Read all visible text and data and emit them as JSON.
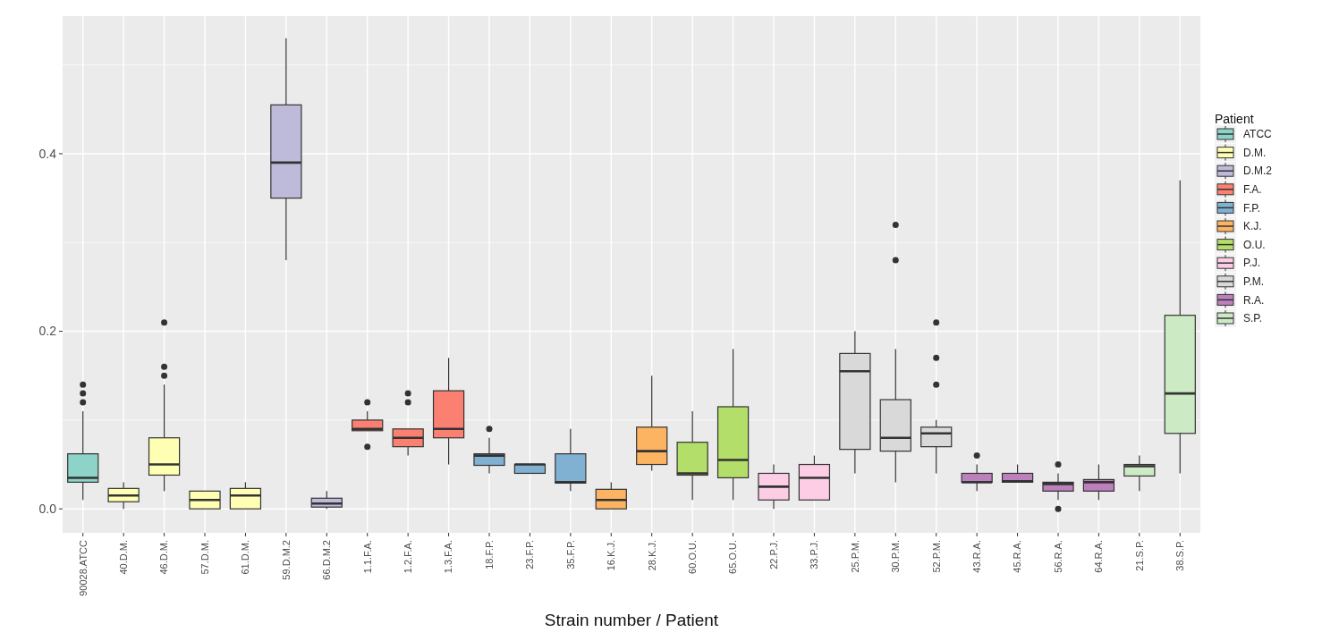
{
  "chart_data": {
    "type": "box",
    "xlabel": "Strain number / Patient",
    "legend_title": "Patient",
    "legend": "right",
    "grid": true,
    "categories": [
      "90028.ATCC",
      "40.D.M.",
      "46.D.M.",
      "57.D.M.",
      "61.D.M.",
      "59.D.M.2",
      "66.D.M.2",
      "1.1.F.A.",
      "1.2.F.A.",
      "1.3.F.A.",
      "18.F.P.",
      "23.F.P.",
      "35.F.P.",
      "16.K.J.",
      "28.K.J.",
      "60.O.U.",
      "65.O.U.",
      "22.P.J.",
      "33.P.J.",
      "25.P.M.",
      "30.P.M.",
      "52.P.M.",
      "43.R.A.",
      "45.R.A.",
      "56.R.A.",
      "64.R.A.",
      "21.S.P.",
      "38.S.P."
    ],
    "ylim": [
      -0.027,
      0.555
    ],
    "yticks": [
      {
        "value": 0,
        "label": "0.0"
      },
      {
        "value": 0.1,
        "label": null
      },
      {
        "value": 0.2,
        "label": "0.2"
      },
      {
        "value": 0.3,
        "label": null
      },
      {
        "value": 0.4,
        "label": "0.4"
      },
      {
        "value": 0.5,
        "label": null
      }
    ],
    "series": [
      {
        "name": "ATCC",
        "color": "#8dd3c7",
        "boxes": [
          {
            "low": 0.01,
            "q1": 0.03,
            "median": 0.035,
            "q3": 0.062,
            "high": 0.11,
            "outliers": [
              0.12,
              0.13,
              0.14
            ]
          },
          null,
          null,
          null,
          null,
          null,
          null,
          null,
          null,
          null,
          null,
          null,
          null,
          null,
          null,
          null,
          null,
          null,
          null,
          null,
          null,
          null,
          null,
          null,
          null,
          null,
          null,
          null
        ]
      },
      {
        "name": "D.M.",
        "color": "#ffffb3",
        "boxes": [
          null,
          {
            "low": 0,
            "q1": 0.008,
            "median": 0.015,
            "q3": 0.023,
            "high": 0.03
          },
          {
            "low": 0.02,
            "q1": 0.038,
            "median": 0.05,
            "q3": 0.08,
            "high": 0.14,
            "outliers": [
              0.15,
              0.16,
              0.21
            ]
          },
          {
            "low": 0,
            "q1": 0,
            "median": 0.01,
            "q3": 0.02,
            "high": 0.02
          },
          {
            "low": 0,
            "q1": 0,
            "median": 0.015,
            "q3": 0.023,
            "high": 0.03
          },
          null,
          null,
          null,
          null,
          null,
          null,
          null,
          null,
          null,
          null,
          null,
          null,
          null,
          null,
          null,
          null,
          null,
          null,
          null,
          null,
          null,
          null,
          null
        ]
      },
      {
        "name": "D.M.2",
        "color": "#bebada",
        "boxes": [
          null,
          null,
          null,
          null,
          null,
          {
            "low": 0.28,
            "q1": 0.35,
            "median": 0.39,
            "q3": 0.455,
            "high": 0.53
          },
          {
            "low": 0,
            "q1": 0.002,
            "median": 0.006,
            "q3": 0.012,
            "high": 0.02
          },
          null,
          null,
          null,
          null,
          null,
          null,
          null,
          null,
          null,
          null,
          null,
          null,
          null,
          null,
          null,
          null,
          null,
          null,
          null,
          null,
          null
        ]
      },
      {
        "name": "F.A.",
        "color": "#fb8072",
        "boxes": [
          null,
          null,
          null,
          null,
          null,
          null,
          null,
          {
            "low": 0.088,
            "q1": 0.088,
            "median": 0.09,
            "q3": 0.1,
            "high": 0.11,
            "outliers": [
              0.07,
              0.12
            ]
          },
          {
            "low": 0.06,
            "q1": 0.07,
            "median": 0.08,
            "q3": 0.09,
            "high": 0.09,
            "outliers": [
              0.12,
              0.13
            ]
          },
          {
            "low": 0.05,
            "q1": 0.08,
            "median": 0.09,
            "q3": 0.133,
            "high": 0.17
          },
          null,
          null,
          null,
          null,
          null,
          null,
          null,
          null,
          null,
          null,
          null,
          null,
          null,
          null,
          null,
          null,
          null,
          null
        ]
      },
      {
        "name": "F.P.",
        "color": "#80b1d3",
        "boxes": [
          null,
          null,
          null,
          null,
          null,
          null,
          null,
          null,
          null,
          null,
          {
            "low": 0.04,
            "q1": 0.049,
            "median": 0.06,
            "q3": 0.062,
            "high": 0.08,
            "outliers": [
              0.09
            ]
          },
          {
            "low": 0.04,
            "q1": 0.04,
            "median": 0.05,
            "q3": 0.05,
            "high": 0.05
          },
          {
            "low": 0.02,
            "q1": 0.029,
            "median": 0.03,
            "q3": 0.062,
            "high": 0.09
          },
          null,
          null,
          null,
          null,
          null,
          null,
          null,
          null,
          null,
          null,
          null,
          null,
          null,
          null,
          null
        ]
      },
      {
        "name": "K.J.",
        "color": "#fdb462",
        "boxes": [
          null,
          null,
          null,
          null,
          null,
          null,
          null,
          null,
          null,
          null,
          null,
          null,
          null,
          {
            "low": 0,
            "q1": 0,
            "median": 0.01,
            "q3": 0.022,
            "high": 0.03
          },
          {
            "low": 0.043,
            "q1": 0.05,
            "median": 0.065,
            "q3": 0.092,
            "high": 0.15
          },
          null,
          null,
          null,
          null,
          null,
          null,
          null,
          null,
          null,
          null,
          null,
          null,
          null
        ]
      },
      {
        "name": "O.U.",
        "color": "#b3de69",
        "boxes": [
          null,
          null,
          null,
          null,
          null,
          null,
          null,
          null,
          null,
          null,
          null,
          null,
          null,
          null,
          null,
          {
            "low": 0.01,
            "q1": 0.038,
            "median": 0.04,
            "q3": 0.075,
            "high": 0.11
          },
          {
            "low": 0.01,
            "q1": 0.035,
            "median": 0.055,
            "q3": 0.115,
            "high": 0.18
          },
          null,
          null,
          null,
          null,
          null,
          null,
          null,
          null,
          null,
          null,
          null
        ]
      },
      {
        "name": "P.J.",
        "color": "#fccde5",
        "boxes": [
          null,
          null,
          null,
          null,
          null,
          null,
          null,
          null,
          null,
          null,
          null,
          null,
          null,
          null,
          null,
          null,
          null,
          {
            "low": 0,
            "q1": 0.01,
            "median": 0.025,
            "q3": 0.04,
            "high": 0.05
          },
          {
            "low": 0.01,
            "q1": 0.01,
            "median": 0.035,
            "q3": 0.05,
            "high": 0.06
          },
          null,
          null,
          null,
          null,
          null,
          null,
          null,
          null,
          null
        ]
      },
      {
        "name": "P.M.",
        "color": "#d9d9d9",
        "boxes": [
          null,
          null,
          null,
          null,
          null,
          null,
          null,
          null,
          null,
          null,
          null,
          null,
          null,
          null,
          null,
          null,
          null,
          null,
          null,
          {
            "low": 0.04,
            "q1": 0.067,
            "median": 0.155,
            "q3": 0.175,
            "high": 0.2
          },
          {
            "low": 0.03,
            "q1": 0.065,
            "median": 0.08,
            "q3": 0.123,
            "high": 0.18,
            "outliers": [
              0.28,
              0.32
            ]
          },
          {
            "low": 0.04,
            "q1": 0.07,
            "median": 0.085,
            "q3": 0.092,
            "high": 0.1,
            "outliers": [
              0.14,
              0.17,
              0.21
            ]
          },
          null,
          null,
          null,
          null,
          null,
          null
        ]
      },
      {
        "name": "R.A.",
        "color": "#bc80bd",
        "boxes": [
          null,
          null,
          null,
          null,
          null,
          null,
          null,
          null,
          null,
          null,
          null,
          null,
          null,
          null,
          null,
          null,
          null,
          null,
          null,
          null,
          null,
          null,
          {
            "low": 0.02,
            "q1": 0.03,
            "median": 0.03,
            "q3": 0.04,
            "high": 0.05,
            "outliers": [
              0.06
            ]
          },
          {
            "low": 0.03,
            "q1": 0.03,
            "median": 0.031,
            "q3": 0.04,
            "high": 0.05
          },
          {
            "low": 0.01,
            "q1": 0.02,
            "median": 0.028,
            "q3": 0.03,
            "high": 0.04,
            "outliers": [
              0,
              0.05
            ]
          },
          {
            "low": 0.01,
            "q1": 0.02,
            "median": 0.03,
            "q3": 0.033,
            "high": 0.05
          },
          null,
          null
        ]
      },
      {
        "name": "S.P.",
        "color": "#ccebc5",
        "boxes": [
          null,
          null,
          null,
          null,
          null,
          null,
          null,
          null,
          null,
          null,
          null,
          null,
          null,
          null,
          null,
          null,
          null,
          null,
          null,
          null,
          null,
          null,
          null,
          null,
          null,
          null,
          {
            "low": 0.02,
            "q1": 0.037,
            "median": 0.048,
            "q3": 0.05,
            "high": 0.06
          },
          {
            "low": 0.04,
            "q1": 0.085,
            "median": 0.13,
            "q3": 0.218,
            "high": 0.37
          }
        ]
      }
    ]
  }
}
